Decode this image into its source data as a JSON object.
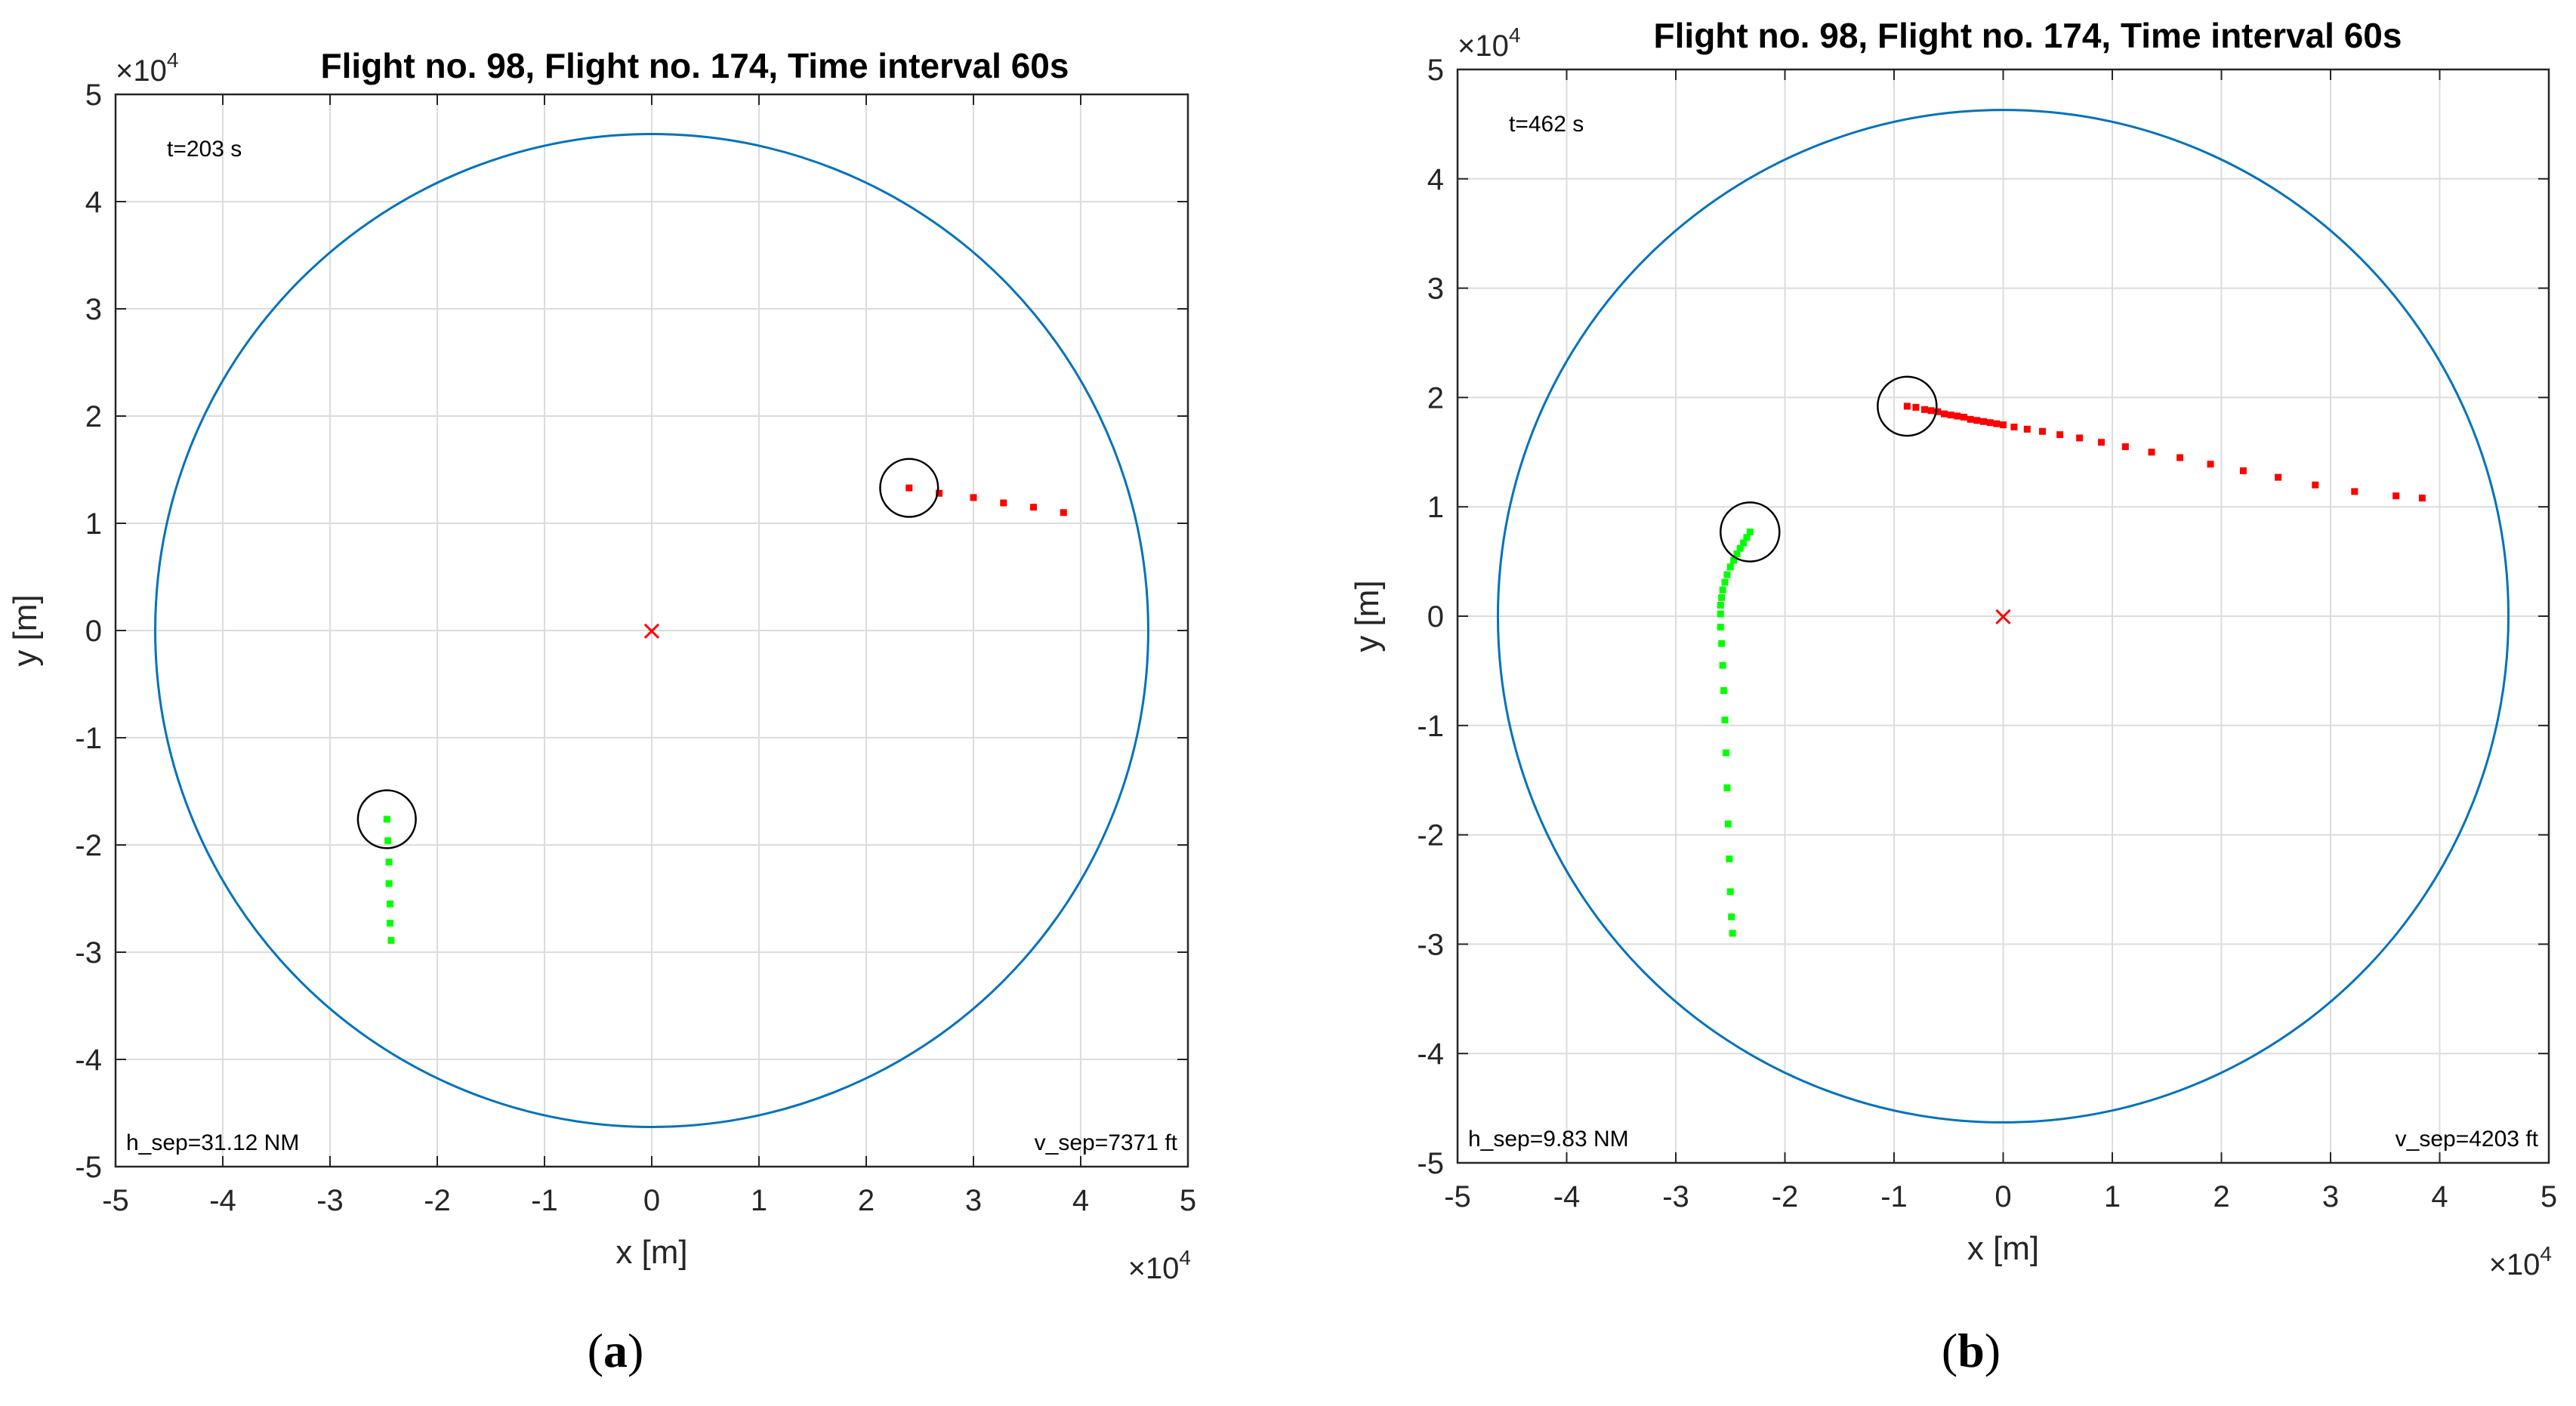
{
  "chart_data": [
    {
      "type": "scatter",
      "panel_label": "a",
      "title": "Flight no. 98, Flight no. 174, Time interval 60s",
      "xlabel": "x [m]",
      "ylabel": "y [m]",
      "xlim": [
        -5,
        5
      ],
      "ylim": [
        -5,
        5
      ],
      "xticks": [
        "-5",
        "-4",
        "-3",
        "-2",
        "-1",
        "0",
        "1",
        "2",
        "3",
        "4",
        "5"
      ],
      "yticks": [
        "5",
        "4",
        "3",
        "2",
        "1",
        "0",
        "-1",
        "-2",
        "-3",
        "-4",
        "-5"
      ],
      "x_exponent": "×10",
      "y_exponent": "×10",
      "exponent_power": "4",
      "grid": true,
      "time_label": "t=203 s",
      "h_sep_label": "h_sep=31.12 NM",
      "v_sep_label": "v_sep=7371 ft",
      "sector_circle": {
        "cx": 0,
        "cy": 0,
        "r": 4.63,
        "color": "#0072BD"
      },
      "center_marker": {
        "x": 0,
        "y": 0,
        "symbol": "×",
        "color": "#ff0000"
      },
      "series": [
        {
          "name": "Flight no. 98",
          "color": "#ff0000",
          "points": [
            [
              2.4,
              1.33
            ],
            [
              2.68,
              1.28
            ],
            [
              3.0,
              1.24
            ],
            [
              3.28,
              1.19
            ],
            [
              3.56,
              1.15
            ],
            [
              3.84,
              1.1
            ]
          ],
          "aircraft": {
            "x": 2.4,
            "y": 1.33,
            "r": 0.27
          }
        },
        {
          "name": "Flight no. 174",
          "color": "#00ff00",
          "points": [
            [
              -2.47,
              -1.76
            ],
            [
              -2.46,
              -1.96
            ],
            [
              -2.45,
              -2.16
            ],
            [
              -2.45,
              -2.36
            ],
            [
              -2.44,
              -2.55
            ],
            [
              -2.44,
              -2.73
            ],
            [
              -2.43,
              -2.89
            ]
          ],
          "aircraft": {
            "x": -2.47,
            "y": -1.76,
            "r": 0.27
          }
        }
      ]
    },
    {
      "type": "scatter",
      "panel_label": "b",
      "title": "Flight no. 98, Flight no. 174, Time interval 60s",
      "xlabel": "x [m]",
      "ylabel": "y [m]",
      "xlim": [
        -5,
        5
      ],
      "ylim": [
        -5,
        5
      ],
      "xticks": [
        "-5",
        "-4",
        "-3",
        "-2",
        "-1",
        "0",
        "1",
        "2",
        "3",
        "4",
        "5"
      ],
      "yticks": [
        "5",
        "4",
        "3",
        "2",
        "1",
        "0",
        "-1",
        "-2",
        "-3",
        "-4",
        "-5"
      ],
      "x_exponent": "×10",
      "y_exponent": "×10",
      "exponent_power": "4",
      "grid": true,
      "time_label": "t=462 s",
      "h_sep_label": "h_sep=9.83 NM",
      "v_sep_label": "v_sep=4203 ft",
      "sector_circle": {
        "cx": 0,
        "cy": 0,
        "r": 4.63,
        "color": "#0072BD"
      },
      "center_marker": {
        "x": 0,
        "y": 0,
        "symbol": "×",
        "color": "#ff0000"
      },
      "series": [
        {
          "name": "Flight no. 98",
          "color": "#ff0000",
          "points": [
            [
              -0.88,
              1.92
            ],
            [
              -0.8,
              1.91
            ],
            [
              -0.72,
              1.89
            ],
            [
              -0.66,
              1.88
            ],
            [
              -0.6,
              1.87
            ],
            [
              -0.54,
              1.85
            ],
            [
              -0.48,
              1.84
            ],
            [
              -0.42,
              1.83
            ],
            [
              -0.36,
              1.82
            ],
            [
              -0.3,
              1.8
            ],
            [
              -0.24,
              1.79
            ],
            [
              -0.18,
              1.78
            ],
            [
              -0.12,
              1.77
            ],
            [
              -0.06,
              1.76
            ],
            [
              0.0,
              1.75
            ],
            [
              0.1,
              1.73
            ],
            [
              0.22,
              1.71
            ],
            [
              0.36,
              1.69
            ],
            [
              0.52,
              1.66
            ],
            [
              0.7,
              1.63
            ],
            [
              0.9,
              1.59
            ],
            [
              1.12,
              1.55
            ],
            [
              1.36,
              1.5
            ],
            [
              1.62,
              1.45
            ],
            [
              1.9,
              1.39
            ],
            [
              2.2,
              1.33
            ],
            [
              2.52,
              1.27
            ],
            [
              2.86,
              1.2
            ],
            [
              3.22,
              1.14
            ],
            [
              3.6,
              1.1
            ],
            [
              3.84,
              1.08
            ]
          ],
          "aircraft": {
            "x": -0.88,
            "y": 1.92,
            "r": 0.27
          }
        },
        {
          "name": "Flight no. 174",
          "color": "#00ff00",
          "points": [
            [
              -2.32,
              0.77
            ],
            [
              -2.35,
              0.72
            ],
            [
              -2.38,
              0.67
            ],
            [
              -2.41,
              0.62
            ],
            [
              -2.44,
              0.57
            ],
            [
              -2.47,
              0.51
            ],
            [
              -2.5,
              0.45
            ],
            [
              -2.53,
              0.38
            ],
            [
              -2.55,
              0.31
            ],
            [
              -2.57,
              0.24
            ],
            [
              -2.58,
              0.17
            ],
            [
              -2.59,
              0.1
            ],
            [
              -2.59,
              0.02
            ],
            [
              -2.59,
              -0.1
            ],
            [
              -2.58,
              -0.25
            ],
            [
              -2.57,
              -0.45
            ],
            [
              -2.56,
              -0.68
            ],
            [
              -2.55,
              -0.95
            ],
            [
              -2.54,
              -1.25
            ],
            [
              -2.53,
              -1.57
            ],
            [
              -2.52,
              -1.9
            ],
            [
              -2.51,
              -2.22
            ],
            [
              -2.5,
              -2.52
            ],
            [
              -2.49,
              -2.75
            ],
            [
              -2.48,
              -2.9
            ]
          ],
          "aircraft": {
            "x": -2.32,
            "y": 0.77,
            "r": 0.27
          }
        }
      ]
    }
  ]
}
